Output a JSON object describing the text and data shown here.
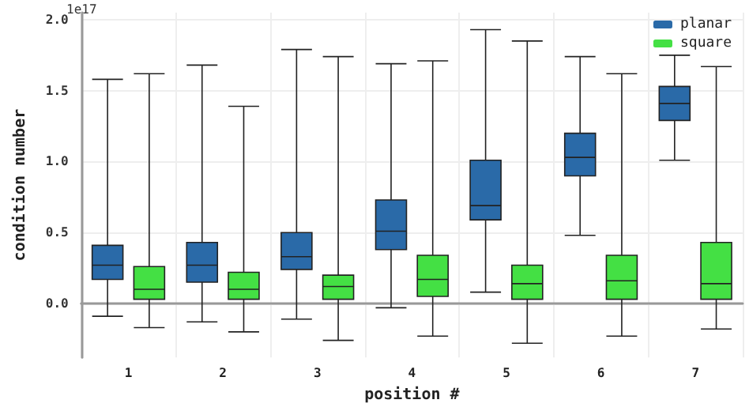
{
  "chart_data": {
    "type": "box",
    "xlabel": "position #",
    "ylabel": "condition number",
    "annotations": [
      "1e17"
    ],
    "categories": [
      "1",
      "2",
      "3",
      "4",
      "5",
      "6",
      "7"
    ],
    "ylim": [
      -0.38,
      2.05
    ],
    "yticks": [
      {
        "value": 0,
        "label": "0.0"
      },
      {
        "value": 0.5,
        "label": "0.5"
      },
      {
        "value": 1,
        "label": "1.0"
      },
      {
        "value": 1.5,
        "label": "1.5"
      },
      {
        "value": 2,
        "label": "2.0"
      }
    ],
    "grid": true,
    "legend": "top right",
    "series": [
      {
        "name": "planar",
        "color": "#2a6aa8",
        "boxes": [
          {
            "low": -0.09,
            "q1": 0.17,
            "median": 0.27,
            "q3": 0.41,
            "high": 1.58
          },
          {
            "low": -0.13,
            "q1": 0.15,
            "median": 0.27,
            "q3": 0.43,
            "high": 1.68
          },
          {
            "low": -0.11,
            "q1": 0.24,
            "median": 0.33,
            "q3": 0.5,
            "high": 1.79
          },
          {
            "low": -0.03,
            "q1": 0.38,
            "median": 0.51,
            "q3": 0.73,
            "high": 1.69
          },
          {
            "low": 0.08,
            "q1": 0.59,
            "median": 0.69,
            "q3": 1.01,
            "high": 1.93
          },
          {
            "low": 0.48,
            "q1": 0.9,
            "median": 1.03,
            "q3": 1.2,
            "high": 1.74
          },
          {
            "low": 1.01,
            "q1": 1.29,
            "median": 1.41,
            "q3": 1.53,
            "high": 1.75
          }
        ]
      },
      {
        "name": "square",
        "color": "#44e044",
        "boxes": [
          {
            "low": -0.17,
            "q1": 0.03,
            "median": 0.1,
            "q3": 0.26,
            "high": 1.62
          },
          {
            "low": -0.2,
            "q1": 0.03,
            "median": 0.1,
            "q3": 0.22,
            "high": 1.39
          },
          {
            "low": -0.26,
            "q1": 0.03,
            "median": 0.12,
            "q3": 0.2,
            "high": 1.74
          },
          {
            "low": -0.23,
            "q1": 0.05,
            "median": 0.17,
            "q3": 0.34,
            "high": 1.71
          },
          {
            "low": -0.28,
            "q1": 0.03,
            "median": 0.14,
            "q3": 0.27,
            "high": 1.85
          },
          {
            "low": -0.23,
            "q1": 0.03,
            "median": 0.16,
            "q3": 0.34,
            "high": 1.62
          },
          {
            "low": -0.18,
            "q1": 0.03,
            "median": 0.14,
            "q3": 0.43,
            "high": 1.67
          }
        ]
      }
    ]
  }
}
